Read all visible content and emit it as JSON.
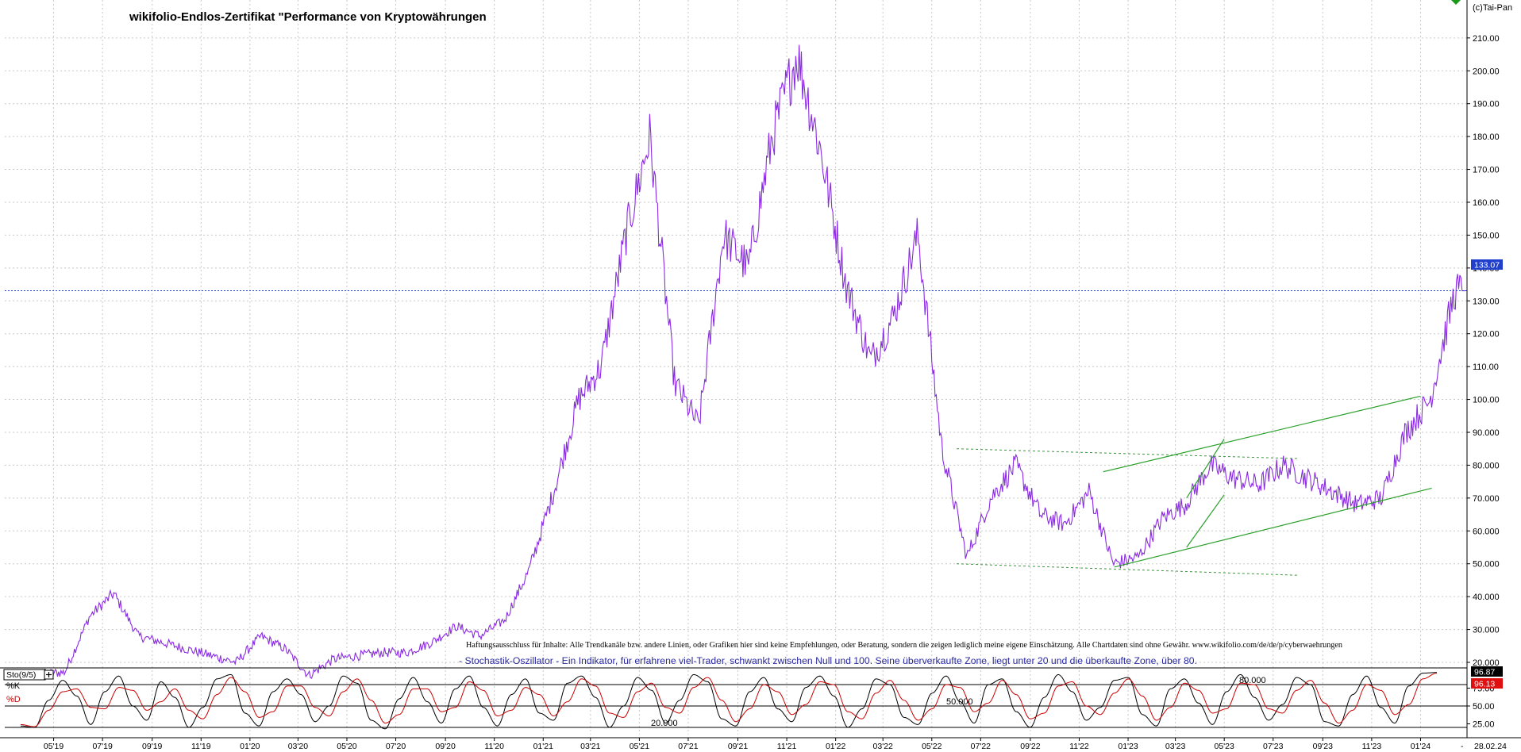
{
  "watermark": "(c)Tai-Pan",
  "chart_data": [
    {
      "type": "line",
      "title": "wikifolio-Endlos-Zertifikat \"Performance von Kryptowährungen",
      "disclaimer": "Haftungsausschluss für Inhalte: Alle Trendkanäle bzw. andere Linien, oder Grafiken hier sind keine Empfehlungen, oder Beratung, sondern die zeigen lediglich meine eigene Einschätzung. Alle Chartdaten sind ohne Gewähr.  www.wikifolio.com/de/de/p/cyberwaehrungen",
      "ylim": [
        15,
        212
      ],
      "yticks": [
        "20.000",
        "30.000",
        "40.000",
        "50.000",
        "60.000",
        "70.000",
        "80.000",
        "90.000",
        "100.00",
        "110.00",
        "120.00",
        "130.00",
        "140.00",
        "150.00",
        "160.00",
        "170.00",
        "180.00",
        "190.00",
        "200.00",
        "210.00"
      ],
      "xticks": [
        "05'19",
        "07'19",
        "09'19",
        "11'19",
        "01'20",
        "03'20",
        "05'20",
        "07'20",
        "09'20",
        "11'20",
        "01'21",
        "03'21",
        "05'21",
        "07'21",
        "09'21",
        "11'21",
        "01'22",
        "03'22",
        "05'22",
        "07'22",
        "09'22",
        "11'22",
        "01'23",
        "03'23",
        "05'23",
        "07'23",
        "09'23",
        "11'23",
        "01'24"
      ],
      "last_value": "133.07",
      "last_date": "28.02.24",
      "grid": true,
      "color": "#8a2be2",
      "series": [
        {
          "x": [
            "2019-03",
            "2019-05",
            "2019-06",
            "2019-07",
            "2019-08",
            "2019-09",
            "2019-10",
            "2019-11",
            "2019-12",
            "2020-01",
            "2020-02",
            "2020-03",
            "2020-04",
            "2020-05",
            "2020-06",
            "2020-07",
            "2020-08",
            "2020-09",
            "2020-10",
            "2020-11",
            "2020-12",
            "2021-01",
            "2021-02",
            "2021-03",
            "2021-04",
            "2021-05",
            "2021-06",
            "2021-07",
            "2021-08",
            "2021-09",
            "2021-10",
            "2021-11",
            "2021-12",
            "2022-01",
            "2022-02",
            "2022-03",
            "2022-04",
            "2022-05",
            "2022-06",
            "2022-07",
            "2022-08",
            "2022-09",
            "2022-10",
            "2022-11",
            "2022-12",
            "2023-01",
            "2023-02",
            "2023-03",
            "2023-04",
            "2023-05",
            "2023-06",
            "2023-07",
            "2023-08",
            "2023-09",
            "2023-10",
            "2023-11",
            "2023-12",
            "2024-01",
            "2024-02"
          ],
          "values": [
            16,
            17,
            34,
            41,
            28,
            26,
            24,
            22,
            20,
            28,
            24,
            16,
            21,
            22,
            23,
            23,
            26,
            31,
            28,
            33,
            48,
            72,
            100,
            110,
            150,
            180,
            105,
            92,
            150,
            140,
            180,
            205,
            175,
            135,
            112,
            125,
            150,
            85,
            52,
            70,
            80,
            65,
            62,
            72,
            50,
            52,
            64,
            68,
            80,
            76,
            74,
            80,
            76,
            72,
            68,
            70,
            90,
            100,
            133.07
          ]
        }
      ],
      "trendlines_solid": [
        {
          "x": [
            "2022-12-15",
            "2024-01-15"
          ],
          "y": [
            49,
            73
          ]
        },
        {
          "x": [
            "2022-12-01",
            "2024-01-01"
          ],
          "y": [
            78,
            101
          ]
        },
        {
          "x": [
            "2023-03-15",
            "2023-05-01"
          ],
          "y": [
            55,
            71
          ]
        },
        {
          "x": [
            "2023-03-15",
            "2023-05-01"
          ],
          "y": [
            70,
            88
          ]
        }
      ],
      "trendlines_dashed": [
        {
          "x": [
            "2022-06-01",
            "2023-08-01"
          ],
          "y": [
            85,
            82
          ]
        },
        {
          "x": [
            "2022-06-01",
            "2023-08-01"
          ],
          "y": [
            50,
            46.5
          ]
        }
      ]
    },
    {
      "type": "line",
      "label": "Sto(9/5)",
      "legend": [
        "%K",
        "%D"
      ],
      "value_k": "96.87",
      "value_d": "96.13",
      "ylim": [
        10,
        100
      ],
      "yticks": [
        "25.00",
        "50.00",
        "75.00"
      ],
      "levels": [
        "20.000",
        "50.000",
        "80.000"
      ],
      "description": "- Stochastik-Oszillator - Ein Indikator, für erfahrene viel-Trader, schwankt zwischen Null und 100. Seine überverkaufte Zone, liegt unter 20 und die überkaufte Zone, über 80.",
      "series": [
        {
          "name": "%K",
          "color": "#000000",
          "values": [
            22,
            20,
            58,
            86,
            64,
            24,
            70,
            92,
            50,
            30,
            84,
            62,
            20,
            48,
            88,
            94,
            40,
            22,
            70,
            88,
            66,
            28,
            50,
            92,
            82,
            30,
            18,
            60,
            90,
            56,
            26,
            74,
            92,
            48,
            22,
            66,
            88,
            40,
            30,
            82,
            92,
            62,
            20,
            50,
            90,
            72,
            26,
            58,
            94,
            84,
            32,
            22,
            70,
            90,
            46,
            28,
            76,
            92,
            64,
            20,
            46,
            88,
            80,
            34,
            24,
            68,
            92,
            56,
            26,
            80,
            88,
            42,
            20,
            62,
            94,
            70,
            30,
            48,
            86,
            90,
            38,
            22,
            74,
            88,
            54,
            24,
            70,
            94,
            62,
            30,
            52,
            90,
            80,
            28,
            22,
            66,
            92,
            48,
            26,
            78,
            96,
            97
          ]
        },
        {
          "name": "%D",
          "color": "#cc0000",
          "values": [
            24,
            21,
            44,
            70,
            74,
            48,
            46,
            76,
            72,
            44,
            56,
            74,
            44,
            32,
            66,
            90,
            70,
            34,
            42,
            78,
            78,
            48,
            36,
            70,
            88,
            58,
            26,
            38,
            74,
            74,
            42,
            48,
            84,
            72,
            36,
            44,
            76,
            66,
            36,
            56,
            88,
            78,
            40,
            34,
            70,
            82,
            48,
            40,
            76,
            90,
            58,
            28,
            46,
            80,
            70,
            38,
            52,
            84,
            80,
            42,
            32,
            68,
            86,
            58,
            30,
            46,
            80,
            76,
            42,
            54,
            86,
            66,
            32,
            40,
            78,
            84,
            50,
            38,
            68,
            88,
            64,
            30,
            48,
            82,
            72,
            40,
            46,
            82,
            80,
            46,
            40,
            72,
            86,
            54,
            26,
            44,
            80,
            72,
            38,
            52,
            88,
            96
          ]
        }
      ]
    }
  ]
}
